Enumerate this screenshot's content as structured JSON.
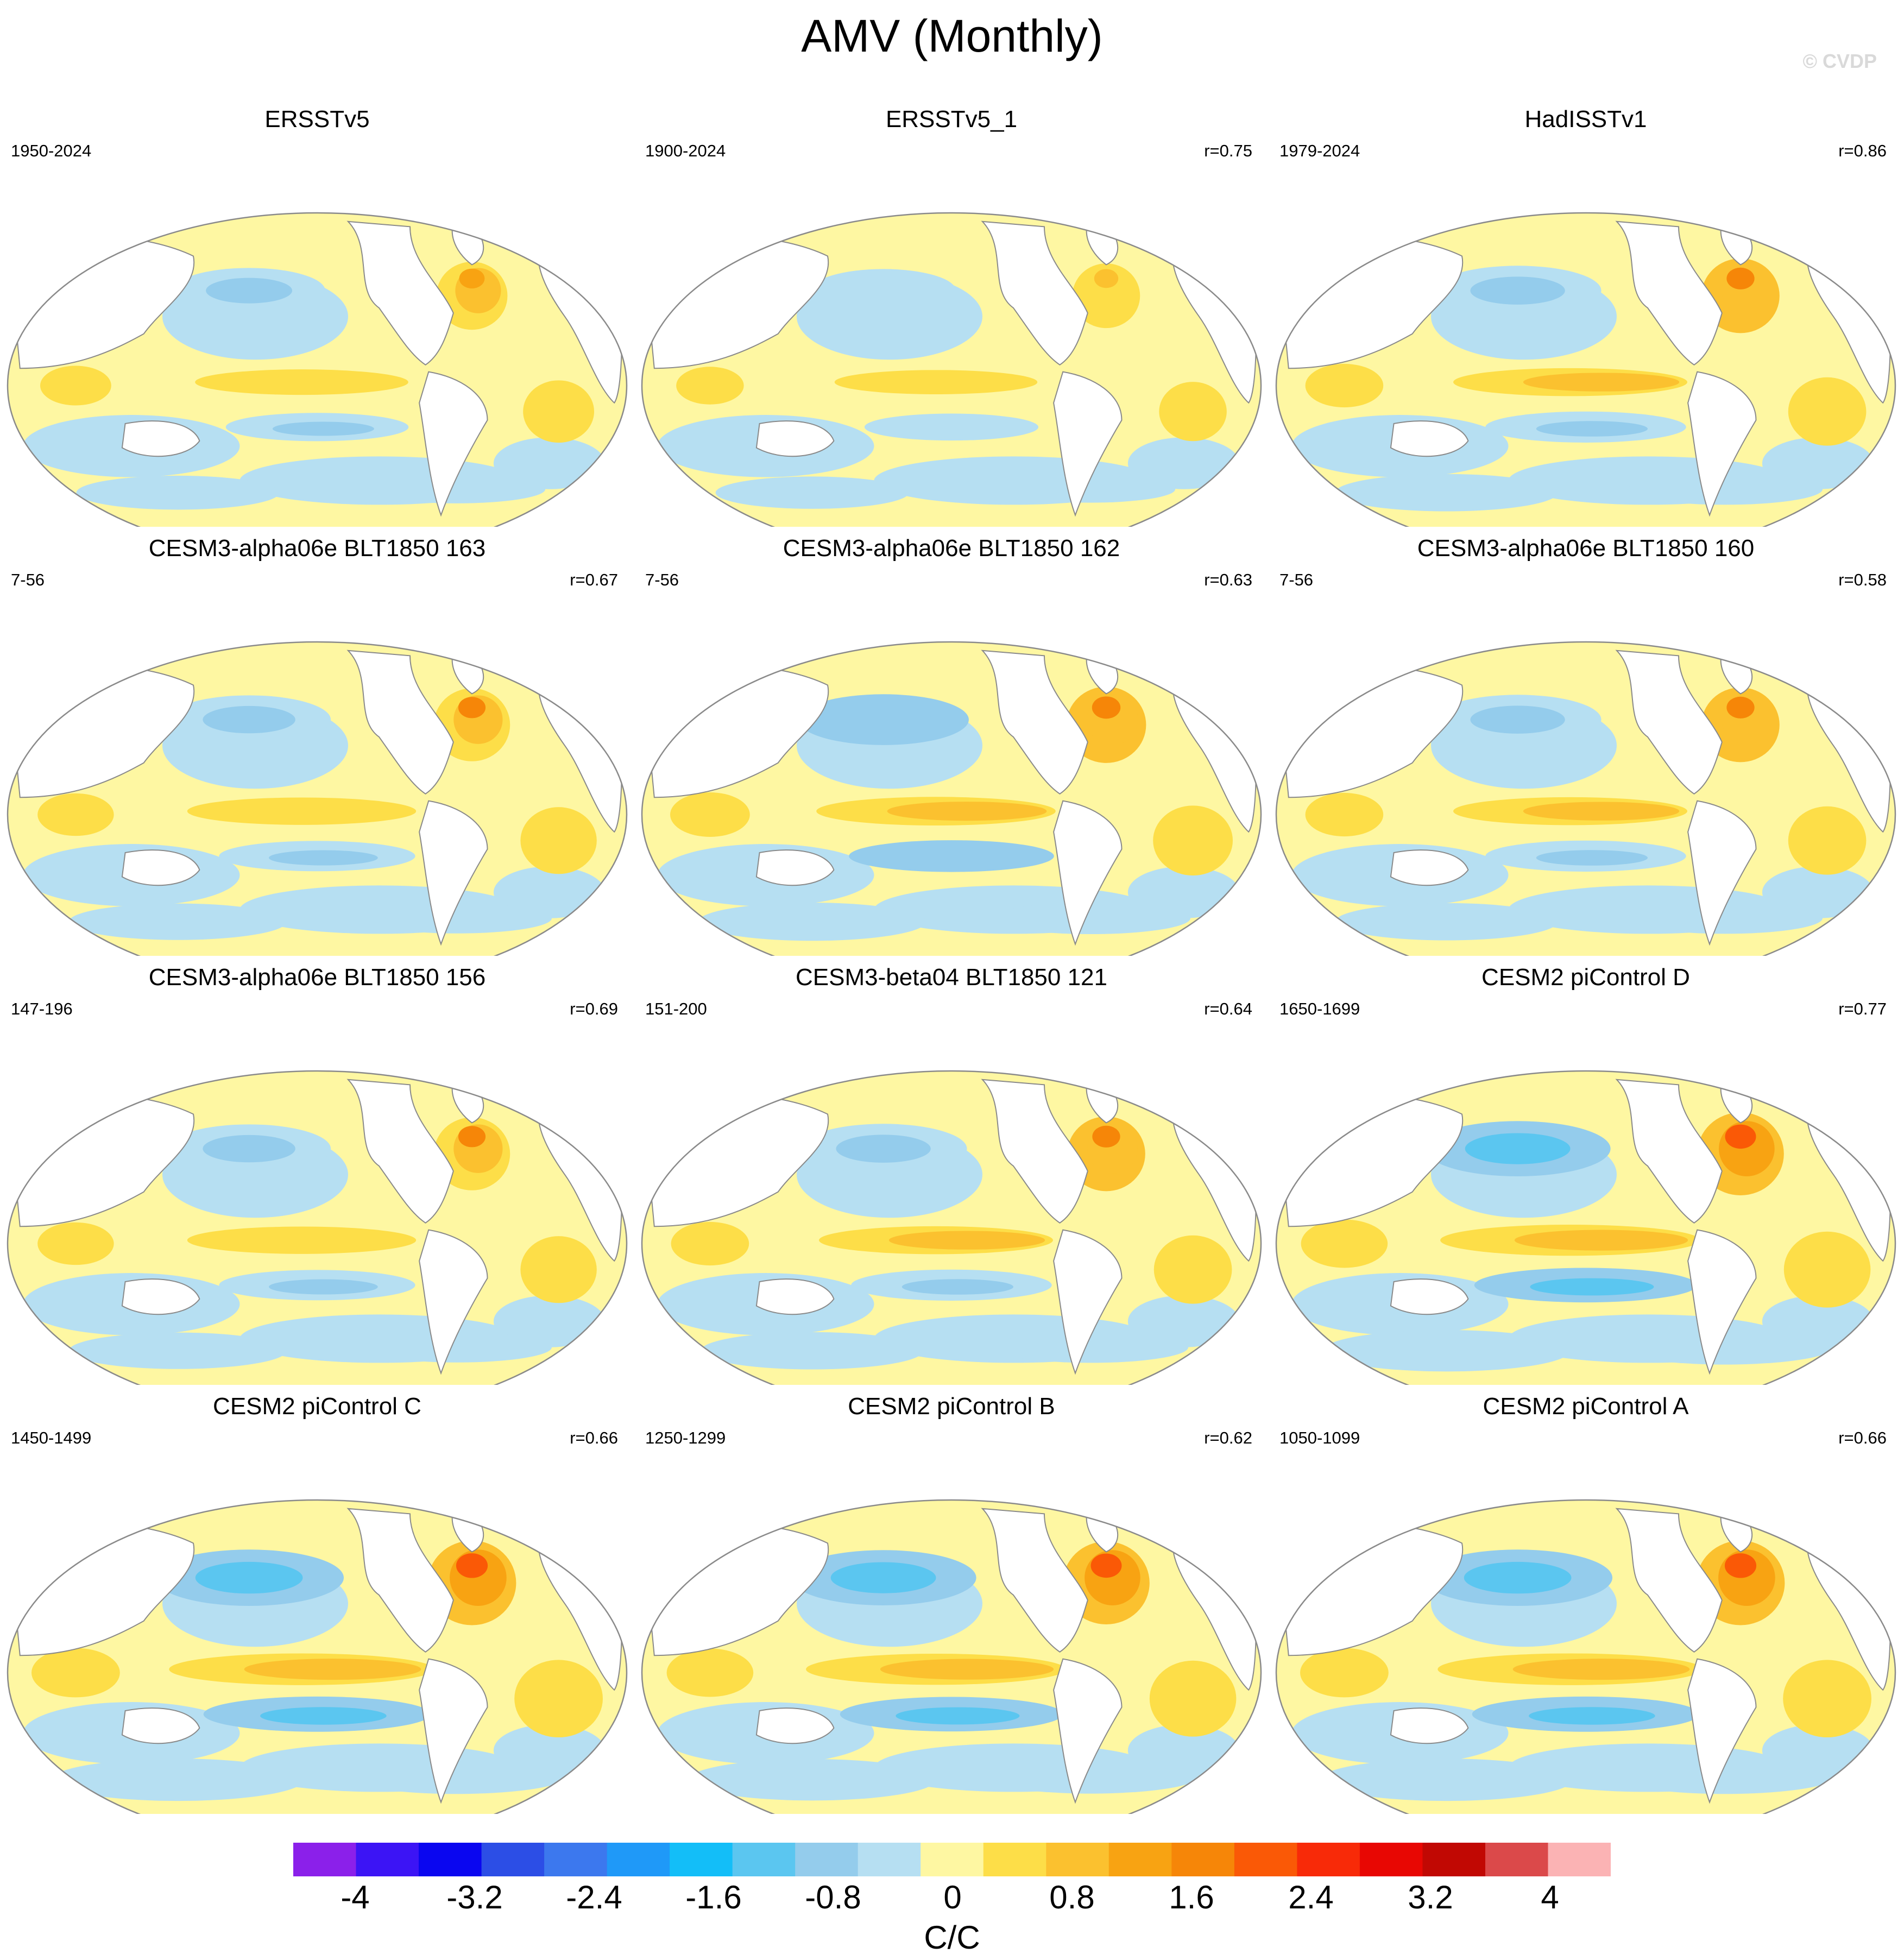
{
  "figure_title": "AMV (Monthly)",
  "copyright": "© CVDP",
  "panels": [
    {
      "title": "ERSSTv5",
      "years": "1950-2024",
      "r": ""
    },
    {
      "title": "ERSSTv5_1",
      "years": "1900-2024",
      "r": "r=0.75"
    },
    {
      "title": "HadISSTv1",
      "years": "1979-2024",
      "r": "r=0.86"
    },
    {
      "title": "CESM3-alpha06e BLT1850 163",
      "years": "7-56",
      "r": "r=0.67"
    },
    {
      "title": "CESM3-alpha06e BLT1850 162",
      "years": "7-56",
      "r": "r=0.63"
    },
    {
      "title": "CESM3-alpha06e BLT1850 160",
      "years": "7-56",
      "r": "r=0.58"
    },
    {
      "title": "CESM3-alpha06e BLT1850 156",
      "years": "147-196",
      "r": "r=0.69"
    },
    {
      "title": "CESM3-beta04 BLT1850 121",
      "years": "151-200",
      "r": "r=0.64"
    },
    {
      "title": "CESM2 piControl D",
      "years": "1650-1699",
      "r": "r=0.77"
    },
    {
      "title": "CESM2 piControl C",
      "years": "1450-1499",
      "r": "r=0.66"
    },
    {
      "title": "CESM2 piControl B",
      "years": "1250-1299",
      "r": "r=0.62"
    },
    {
      "title": "CESM2 piControl A",
      "years": "1050-1099",
      "r": "r=0.66"
    }
  ],
  "colorbar": {
    "unit": "C/C",
    "tick_labels": [
      "-4",
      "-3.2",
      "-2.4",
      "-1.6",
      "-0.8",
      "0",
      "0.8",
      "1.6",
      "2.4",
      "3.2",
      "4"
    ],
    "colors": [
      "#8b20ea",
      "#3c14f5",
      "#0a06f0",
      "#2c4ee6",
      "#3c78ee",
      "#1f99f8",
      "#13bef8",
      "#5bc6f0",
      "#94ccec",
      "#b6dff2",
      "#fef7a2",
      "#fdde48",
      "#fbc12f",
      "#f8a312",
      "#f68608",
      "#fa5906",
      "#f82a08",
      "#e80703",
      "#c10803",
      "#db494a",
      "#fbb3b4"
    ]
  },
  "map_style": {
    "land": "#ffffff",
    "coast": "#8a8a8a",
    "ocean_warm": "#fef7a2",
    "ocean_cool": "#b6dff2"
  }
}
